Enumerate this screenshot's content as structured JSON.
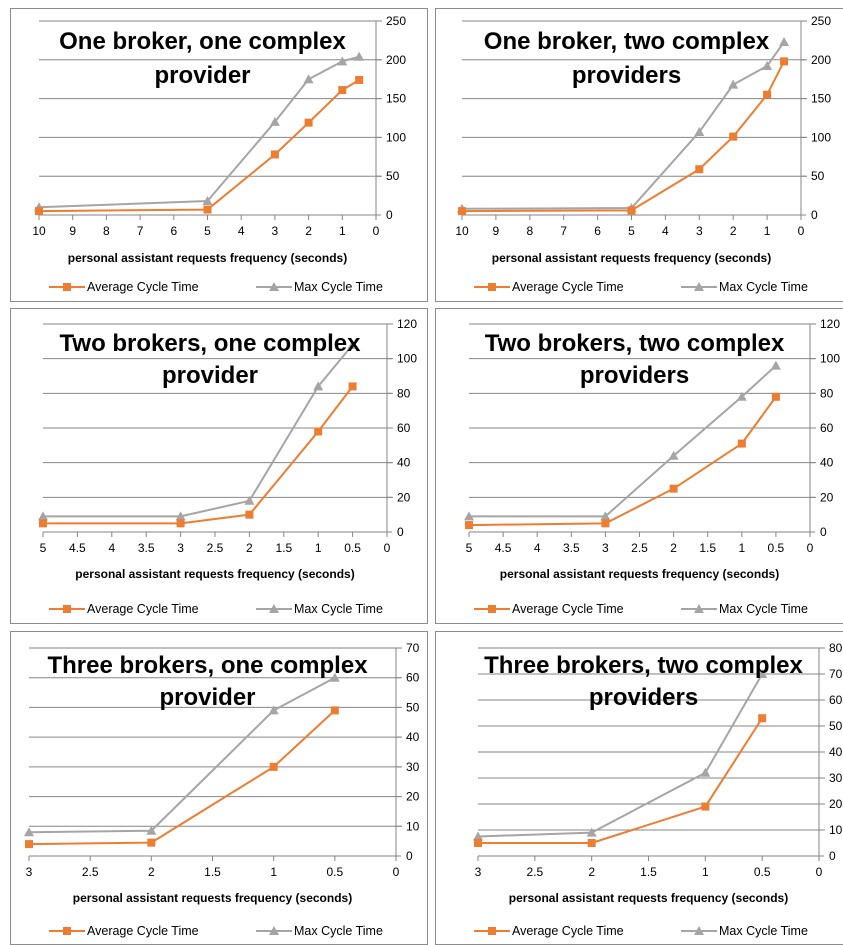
{
  "colors": {
    "average": "#ed7d31",
    "max": "#a5a5a5",
    "grid": "#868686"
  },
  "chart_data": [
    {
      "type": "line",
      "title": [
        "One broker, one complex",
        "provider"
      ],
      "xlabel": "personal assistant requests frequency (seconds)",
      "x_ticks": [
        10,
        9,
        8,
        7,
        6,
        5,
        4,
        3,
        2,
        1,
        0
      ],
      "xlim": [
        10,
        0
      ],
      "ylim": [
        0,
        250
      ],
      "y_ticks": [
        0,
        50,
        100,
        150,
        200,
        250
      ],
      "x": [
        10,
        5,
        3,
        2,
        1,
        0.5
      ],
      "series": [
        {
          "name": "Average Cycle Time",
          "values": [
            5,
            7,
            78,
            119,
            161,
            174
          ]
        },
        {
          "name": "Max Cycle Time",
          "values": [
            10,
            18,
            120,
            175,
            198,
            204
          ]
        }
      ],
      "legend": "bottom"
    },
    {
      "type": "line",
      "title": [
        "One broker, two complex",
        "providers"
      ],
      "xlabel": "personal assistant requests frequency (seconds)",
      "x_ticks": [
        10,
        9,
        8,
        7,
        6,
        5,
        4,
        3,
        2,
        1,
        0
      ],
      "xlim": [
        10,
        0
      ],
      "ylim": [
        0,
        250
      ],
      "y_ticks": [
        0,
        50,
        100,
        150,
        200,
        250
      ],
      "x": [
        10,
        5,
        3,
        2,
        1,
        0.5
      ],
      "series": [
        {
          "name": "Average Cycle Time",
          "values": [
            5,
            6,
            59,
            101,
            155,
            198
          ]
        },
        {
          "name": "Max Cycle Time",
          "values": [
            8,
            9,
            107,
            168,
            192,
            223
          ]
        }
      ],
      "legend": "bottom"
    },
    {
      "type": "line",
      "title": [
        "Two brokers, one complex",
        "provider"
      ],
      "xlabel": "personal assistant requests frequency (seconds)",
      "x_ticks": [
        5,
        4.5,
        4,
        3.5,
        3,
        2.5,
        2,
        1.5,
        1,
        0.5,
        0
      ],
      "xlim": [
        5,
        0
      ],
      "ylim": [
        0,
        120
      ],
      "y_ticks": [
        0,
        20,
        40,
        60,
        80,
        100,
        120
      ],
      "x": [
        5,
        3,
        2,
        1,
        0.5
      ],
      "series": [
        {
          "name": "Average Cycle Time",
          "values": [
            5,
            5,
            10,
            58,
            84
          ]
        },
        {
          "name": "Max Cycle Time",
          "values": [
            9,
            9,
            18,
            84,
            108
          ]
        }
      ],
      "legend": "bottom"
    },
    {
      "type": "line",
      "title": [
        "Two brokers, two complex",
        "providers"
      ],
      "xlabel": "personal assistant requests frequency (seconds)",
      "x_ticks": [
        5,
        4.5,
        4,
        3.5,
        3,
        2.5,
        2,
        1.5,
        1,
        0.5,
        0
      ],
      "xlim": [
        5,
        0
      ],
      "ylim": [
        0,
        120
      ],
      "y_ticks": [
        0,
        20,
        40,
        60,
        80,
        100,
        120
      ],
      "x": [
        5,
        3,
        2,
        1,
        0.5
      ],
      "series": [
        {
          "name": "Average Cycle Time",
          "values": [
            4,
            5,
            25,
            51,
            78
          ]
        },
        {
          "name": "Max Cycle Time",
          "values": [
            9,
            9,
            44,
            78,
            96
          ]
        }
      ],
      "legend": "bottom"
    },
    {
      "type": "line",
      "title": [
        "Three brokers, one complex",
        "provider"
      ],
      "xlabel": "personal assistant requests frequency (seconds)",
      "x_ticks": [
        3,
        2.5,
        2,
        1.5,
        1,
        0.5,
        0
      ],
      "xlim": [
        3,
        0
      ],
      "ylim": [
        0,
        70
      ],
      "y_ticks": [
        0,
        10,
        20,
        30,
        40,
        50,
        60,
        70
      ],
      "x": [
        3,
        2,
        1,
        0.5
      ],
      "series": [
        {
          "name": "Average Cycle Time",
          "values": [
            4,
            4.5,
            30,
            49
          ]
        },
        {
          "name": "Max Cycle Time",
          "values": [
            8,
            8.5,
            49,
            60
          ]
        }
      ],
      "legend": "bottom"
    },
    {
      "type": "line",
      "title": [
        "Three brokers, two complex",
        "providers"
      ],
      "xlabel": "personal assistant requests frequency (seconds)",
      "x_ticks": [
        3,
        2.5,
        2,
        1.5,
        1,
        0.5,
        0
      ],
      "xlim": [
        3,
        0
      ],
      "ylim": [
        0,
        80
      ],
      "y_ticks": [
        0,
        10,
        20,
        30,
        40,
        50,
        60,
        70,
        80
      ],
      "x": [
        3,
        2,
        1,
        0.5
      ],
      "series": [
        {
          "name": "Average Cycle Time",
          "values": [
            5,
            5,
            19,
            53
          ]
        },
        {
          "name": "Max Cycle Time",
          "values": [
            7.5,
            9,
            32,
            70
          ]
        }
      ],
      "legend": "bottom"
    }
  ]
}
